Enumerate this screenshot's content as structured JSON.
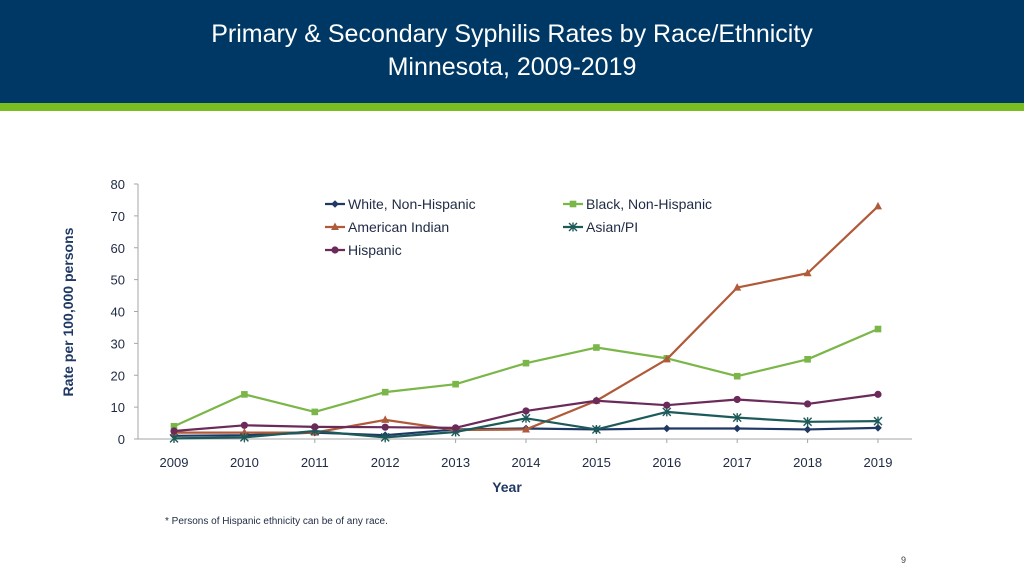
{
  "header": {
    "title_line1": "Primary & Secondary Syphilis Rates by Race/Ethnicity",
    "title_line2": "Minnesota, 2009-2019",
    "bg_color": "#003865",
    "stripe_color": "#78be20"
  },
  "chart_data": {
    "type": "line",
    "title": "Primary & Secondary Syphilis Rates by Race/Ethnicity Minnesota, 2009-2019",
    "xlabel": "Year",
    "ylabel": "Rate per 100,000 persons",
    "categories": [
      "2009",
      "2010",
      "2011",
      "2012",
      "2013",
      "2014",
      "2015",
      "2016",
      "2017",
      "2018",
      "2019"
    ],
    "ylim": [
      0,
      80
    ],
    "yticks": [
      0,
      10,
      20,
      30,
      40,
      50,
      60,
      70,
      80
    ],
    "grid": false,
    "legend_position": "top",
    "series": [
      {
        "name": "White, Non-Hispanic",
        "color": "#1f3864",
        "marker": "diamond",
        "values": [
          1.0,
          1.2,
          2.0,
          1.2,
          3.0,
          3.3,
          3.0,
          3.3,
          3.3,
          3.0,
          3.5
        ]
      },
      {
        "name": "Black, Non-Hispanic",
        "color": "#7ab648",
        "marker": "square",
        "values": [
          4.0,
          14.0,
          8.5,
          14.7,
          17.2,
          23.8,
          28.7,
          25.3,
          19.7,
          25.0,
          34.5
        ]
      },
      {
        "name": "American Indian",
        "color": "#b05a3a",
        "marker": "triangle",
        "values": [
          2.0,
          2.0,
          2.0,
          6.0,
          2.8,
          3.0,
          12.0,
          25.0,
          47.5,
          52.0,
          73.0
        ]
      },
      {
        "name": "Asian/PI",
        "color": "#1d5a5a",
        "marker": "star",
        "values": [
          0.2,
          0.5,
          2.5,
          0.5,
          2.2,
          6.5,
          3.0,
          8.5,
          6.7,
          5.4,
          5.6
        ]
      },
      {
        "name": "Hispanic",
        "color": "#6a2a5a",
        "marker": "circle",
        "values": [
          2.5,
          4.3,
          3.8,
          3.7,
          3.5,
          8.8,
          12.0,
          10.6,
          12.4,
          11.0,
          14.0
        ]
      }
    ]
  },
  "footnote": "* Persons of Hispanic ethnicity can be of any race.",
  "page_number": "9"
}
